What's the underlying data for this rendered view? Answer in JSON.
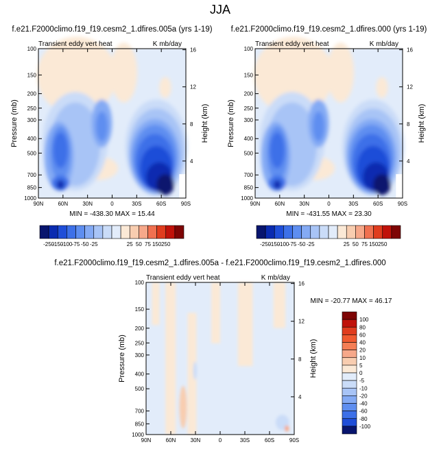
{
  "figure": {
    "title": "JJA"
  },
  "panels": [
    {
      "id": "top-left",
      "title": "f.e21.F2000climo.f19_f19.cesm2_1.dfires.005a (yrs 1-19)",
      "left_label": "Transient eddy vert heat",
      "right_label": "K mb/day",
      "ylabel": "Pressure (mb)",
      "y2label": "Height (km)",
      "stats": "MIN = -438.30   MAX = 15.44"
    },
    {
      "id": "top-right",
      "title": "f.e21.F2000climo.f19_f19.cesm2_1.dfires.000 (yrs 1-19)",
      "left_label": "Transient eddy vert heat",
      "right_label": "K mb/day",
      "ylabel": "Pressure (mb)",
      "y2label": "Height (km)",
      "stats": "MIN = -431.55   MAX = 23.30"
    },
    {
      "id": "bottom",
      "title": "f.e21.F2000climo.f19_f19.cesm2_1.dfires.005a - f.e21.F2000climo.f19_f19.cesm2_1.dfires.000",
      "left_label": "Transient eddy vert heat",
      "right_label": "K mb/day",
      "ylabel": "Pressure (mb)",
      "y2label": "Height (km)",
      "stats": "MIN = -20.77   MAX = 46.17"
    }
  ],
  "axes": {
    "x_ticks": [
      "90N",
      "60N",
      "30N",
      "0",
      "30S",
      "60S",
      "90S"
    ],
    "y_ticks": [
      "100",
      "150",
      "200",
      "250",
      "300",
      "400",
      "500",
      "700",
      "850",
      "1000"
    ],
    "y_tick_values": [
      100,
      150,
      200,
      250,
      300,
      400,
      500,
      700,
      850,
      1000
    ],
    "y2_ticks": [
      "16",
      "12",
      "8",
      "4"
    ],
    "y2_tick_values": [
      16,
      12,
      8,
      4
    ],
    "y_scale": "log"
  },
  "colorbars": {
    "main": {
      "labels": [
        "-250",
        "-150",
        "-100",
        "-75",
        "-50",
        "-25",
        "25",
        "50",
        "75",
        "150",
        "250"
      ],
      "colors": [
        "#08156e",
        "#0a2bb0",
        "#1f4ed8",
        "#3d70e8",
        "#5e8ef0",
        "#84aaf4",
        "#a8c4f6",
        "#cadcf8",
        "#e2ecfa",
        "#fbe9d6",
        "#f8cdb0",
        "#f6a88a",
        "#f07050",
        "#e03c1e",
        "#c0120a",
        "#7e0505"
      ]
    },
    "diff": {
      "labels": [
        "100",
        "80",
        "60",
        "40",
        "20",
        "10",
        "5",
        "0",
        "-5",
        "-10",
        "-20",
        "-40",
        "-60",
        "-80",
        "-100"
      ],
      "colors": [
        "#7e0505",
        "#c0120a",
        "#e03c1e",
        "#f05a30",
        "#f47e55",
        "#f6a88a",
        "#f8cdb0",
        "#fbe9d6",
        "#e2ecfa",
        "#cadcf8",
        "#a8c4f6",
        "#84aaf4",
        "#5e8ef0",
        "#3d70e8",
        "#1f4ed8",
        "#08156e"
      ]
    }
  },
  "chart_data": [
    {
      "type": "heatmap",
      "panel": "top-left",
      "title": "f.e21.F2000climo.f19_f19.cesm2_1.dfires.005a (yrs 1-19)",
      "xlabel": "",
      "ylabel": "Pressure (mb)",
      "x_range": [
        "90N",
        "90S"
      ],
      "y_range": [
        100,
        1000
      ],
      "units": "K mb/day",
      "min": -438.3,
      "max": 15.44
    },
    {
      "type": "heatmap",
      "panel": "top-right",
      "title": "f.e21.F2000climo.f19_f19.cesm2_1.dfires.000 (yrs 1-19)",
      "xlabel": "",
      "ylabel": "Pressure (mb)",
      "x_range": [
        "90N",
        "90S"
      ],
      "y_range": [
        100,
        1000
      ],
      "units": "K mb/day",
      "min": -431.55,
      "max": 23.3
    },
    {
      "type": "heatmap",
      "panel": "bottom",
      "title": "f.e21.F2000climo.f19_f19.cesm2_1.dfires.005a - f.e21.F2000climo.f19_f19.cesm2_1.dfires.000",
      "xlabel": "",
      "ylabel": "Pressure (mb)",
      "x_range": [
        "90N",
        "90S"
      ],
      "y_range": [
        100,
        1000
      ],
      "units": "K mb/day",
      "min": -20.77,
      "max": 46.17
    }
  ]
}
